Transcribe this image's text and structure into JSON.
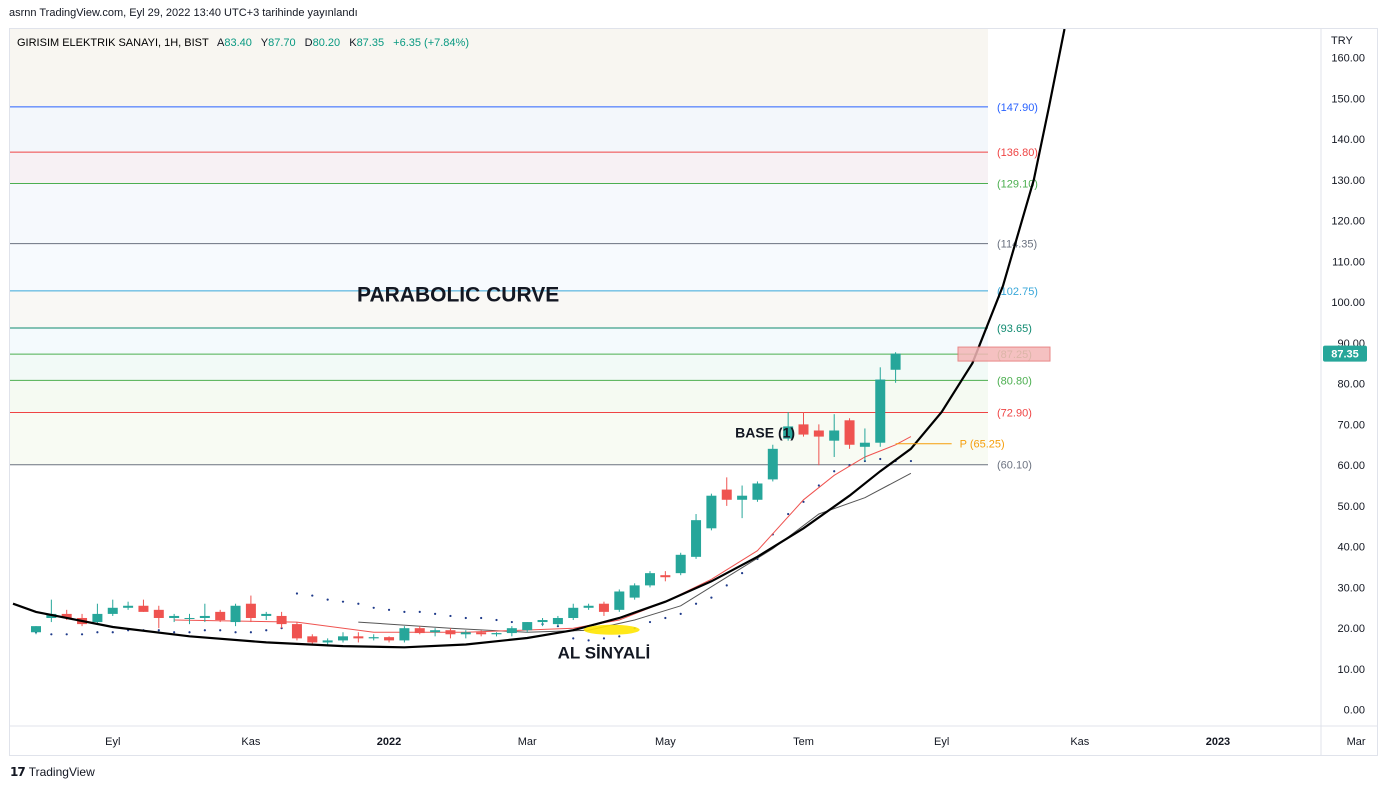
{
  "header": {
    "published": "asrnn TradingView.com, Eyl 29, 2022 13:40 UTC+3 tarihinde yayınlandı"
  },
  "legend": {
    "symbol": "GIRISIM ELEKTRIK SANAYI, 1H, BIST",
    "open_label": "A",
    "open": "83.40",
    "high_label": "Y",
    "high": "87.70",
    "low_label": "D",
    "low": "80.20",
    "close_label": "K",
    "close": "87.35",
    "change": "+6.35 (+7.84%)"
  },
  "currency": "TRY",
  "last_price": "87.35",
  "footer": {
    "brand": "TradingView"
  },
  "colors": {
    "up": "#26a69a",
    "down": "#ef5350",
    "curve": "#000000",
    "ma_fast": "#ef5350",
    "ma_slow": "#555555",
    "sar": "#1e3a8a",
    "pivot": "#f59e0b"
  },
  "chart_data": {
    "type": "candlestick",
    "ylim": [
      -4,
      167
    ],
    "y_ticks": [
      "0.00",
      "10.00",
      "20.00",
      "30.00",
      "40.00",
      "50.00",
      "60.00",
      "70.00",
      "80.00",
      "90.00",
      "100.00",
      "110.00",
      "120.00",
      "130.00",
      "140.00",
      "150.00",
      "160.00"
    ],
    "x_labels": [
      {
        "label": "Eyl",
        "i": 5
      },
      {
        "label": "Kas",
        "i": 14
      },
      {
        "label": "2022",
        "i": 23
      },
      {
        "label": "Mar",
        "i": 32
      },
      {
        "label": "May",
        "i": 41
      },
      {
        "label": "Tem",
        "i": 50
      },
      {
        "label": "Eyl",
        "i": 59
      },
      {
        "label": "Kas",
        "i": 68
      },
      {
        "label": "2023",
        "i": 77
      },
      {
        "label": "Mar",
        "i": 86
      }
    ],
    "candles": [
      {
        "o": 19.0,
        "h": 20.5,
        "l": 18.5,
        "c": 20.5
      },
      {
        "o": 22.5,
        "h": 27.0,
        "l": 21.5,
        "c": 23.5
      },
      {
        "o": 23.5,
        "h": 24.5,
        "l": 22.0,
        "c": 22.5
      },
      {
        "o": 22.5,
        "h": 23.5,
        "l": 20.5,
        "c": 21.0
      },
      {
        "o": 21.5,
        "h": 26.0,
        "l": 21.0,
        "c": 23.5
      },
      {
        "o": 23.5,
        "h": 27.0,
        "l": 23.0,
        "c": 25.0
      },
      {
        "o": 25.0,
        "h": 26.5,
        "l": 24.5,
        "c": 25.5
      },
      {
        "o": 25.5,
        "h": 27.0,
        "l": 24.0,
        "c": 24.0
      },
      {
        "o": 24.5,
        "h": 25.5,
        "l": 20.0,
        "c": 22.5
      },
      {
        "o": 22.5,
        "h": 23.5,
        "l": 21.5,
        "c": 23.0
      },
      {
        "o": 22.5,
        "h": 23.5,
        "l": 21.0,
        "c": 22.5
      },
      {
        "o": 22.5,
        "h": 26.0,
        "l": 21.5,
        "c": 23.0
      },
      {
        "o": 24.0,
        "h": 24.5,
        "l": 21.5,
        "c": 22.0
      },
      {
        "o": 21.5,
        "h": 26.0,
        "l": 20.5,
        "c": 25.5
      },
      {
        "o": 26.0,
        "h": 28.0,
        "l": 21.5,
        "c": 22.5
      },
      {
        "o": 23.0,
        "h": 24.0,
        "l": 22.0,
        "c": 23.5
      },
      {
        "o": 23.0,
        "h": 24.0,
        "l": 20.0,
        "c": 21.0
      },
      {
        "o": 21.0,
        "h": 21.5,
        "l": 17.0,
        "c": 17.5
      },
      {
        "o": 18.0,
        "h": 18.5,
        "l": 16.0,
        "c": 16.5
      },
      {
        "o": 16.5,
        "h": 17.5,
        "l": 15.5,
        "c": 17.0
      },
      {
        "o": 17.0,
        "h": 19.0,
        "l": 16.5,
        "c": 18.0
      },
      {
        "o": 18.0,
        "h": 19.0,
        "l": 16.5,
        "c": 17.5
      },
      {
        "o": 17.5,
        "h": 18.5,
        "l": 17.0,
        "c": 17.8
      },
      {
        "o": 17.8,
        "h": 18.0,
        "l": 16.5,
        "c": 17.0
      },
      {
        "o": 17.0,
        "h": 20.5,
        "l": 16.5,
        "c": 20.0
      },
      {
        "o": 20.0,
        "h": 20.5,
        "l": 18.5,
        "c": 18.8
      },
      {
        "o": 19.0,
        "h": 20.0,
        "l": 18.0,
        "c": 19.5
      },
      {
        "o": 19.5,
        "h": 20.0,
        "l": 17.5,
        "c": 18.5
      },
      {
        "o": 18.5,
        "h": 19.5,
        "l": 17.5,
        "c": 19.0
      },
      {
        "o": 19.0,
        "h": 19.5,
        "l": 18.0,
        "c": 18.5
      },
      {
        "o": 18.5,
        "h": 19.0,
        "l": 18.0,
        "c": 18.8
      },
      {
        "o": 18.8,
        "h": 20.5,
        "l": 18.0,
        "c": 20.0
      },
      {
        "o": 19.5,
        "h": 21.5,
        "l": 19.0,
        "c": 21.5
      },
      {
        "o": 21.5,
        "h": 22.5,
        "l": 20.5,
        "c": 22.0
      },
      {
        "o": 21.0,
        "h": 23.0,
        "l": 20.5,
        "c": 22.5
      },
      {
        "o": 22.5,
        "h": 26.0,
        "l": 22.0,
        "c": 25.0
      },
      {
        "o": 25.0,
        "h": 26.0,
        "l": 24.5,
        "c": 25.5
      },
      {
        "o": 26.0,
        "h": 26.5,
        "l": 23.0,
        "c": 24.0
      },
      {
        "o": 24.5,
        "h": 29.5,
        "l": 24.0,
        "c": 29.0
      },
      {
        "o": 27.5,
        "h": 31.0,
        "l": 27.0,
        "c": 30.5
      },
      {
        "o": 30.5,
        "h": 34.0,
        "l": 30.0,
        "c": 33.5
      },
      {
        "o": 33.0,
        "h": 34.0,
        "l": 31.5,
        "c": 32.5
      },
      {
        "o": 33.5,
        "h": 38.5,
        "l": 33.0,
        "c": 38.0
      },
      {
        "o": 37.5,
        "h": 48.0,
        "l": 37.0,
        "c": 46.5
      },
      {
        "o": 44.5,
        "h": 53.0,
        "l": 44.0,
        "c": 52.5
      },
      {
        "o": 54.0,
        "h": 57.0,
        "l": 50.0,
        "c": 51.5
      },
      {
        "o": 51.5,
        "h": 55.0,
        "l": 47.0,
        "c": 52.5
      },
      {
        "o": 51.5,
        "h": 56.0,
        "l": 51.0,
        "c": 55.5
      },
      {
        "o": 56.5,
        "h": 65.0,
        "l": 56.0,
        "c": 64.0
      },
      {
        "o": 66.5,
        "h": 73.0,
        "l": 66.0,
        "c": 69.5
      },
      {
        "o": 70.0,
        "h": 73.0,
        "l": 67.0,
        "c": 67.5
      },
      {
        "o": 68.5,
        "h": 70.0,
        "l": 60.0,
        "c": 67.0
      },
      {
        "o": 66.0,
        "h": 72.5,
        "l": 62.0,
        "c": 68.5
      },
      {
        "o": 71.0,
        "h": 71.5,
        "l": 64.0,
        "c": 65.0
      },
      {
        "o": 64.5,
        "h": 69.0,
        "l": 61.0,
        "c": 65.5
      },
      {
        "o": 65.5,
        "h": 84.0,
        "l": 64.5,
        "c": 81.0
      },
      {
        "o": 83.4,
        "h": 87.7,
        "l": 80.2,
        "c": 87.35
      }
    ],
    "ma_fast": [
      [
        9,
        22.0
      ],
      [
        17,
        21.5
      ],
      [
        22,
        19.0
      ],
      [
        28,
        19.0
      ],
      [
        35,
        20.0
      ],
      [
        38,
        22.0
      ],
      [
        41,
        26.5
      ],
      [
        44,
        32.0
      ],
      [
        47,
        39.0
      ],
      [
        50,
        51.5
      ],
      [
        52,
        57.5
      ],
      [
        54,
        62.0
      ],
      [
        56,
        65.0
      ],
      [
        57,
        67.0
      ]
    ],
    "ma_slow": [
      [
        21,
        21.5
      ],
      [
        27,
        20.0
      ],
      [
        32,
        19.0
      ],
      [
        36,
        19.5
      ],
      [
        39,
        22.0
      ],
      [
        42,
        25.5
      ],
      [
        45,
        32.5
      ],
      [
        48,
        39.5
      ],
      [
        51,
        48.0
      ],
      [
        54,
        52.0
      ],
      [
        56,
        56.0
      ],
      [
        57,
        58.0
      ]
    ],
    "sar": [
      [
        0,
        19.0
      ],
      [
        1,
        18.5
      ],
      [
        2,
        18.5
      ],
      [
        3,
        18.5
      ],
      [
        4,
        19.0
      ],
      [
        5,
        19.0
      ],
      [
        6,
        19.5
      ],
      [
        7,
        19.5
      ],
      [
        8,
        19.5
      ],
      [
        9,
        19.0
      ],
      [
        10,
        19.0
      ],
      [
        11,
        19.5
      ],
      [
        12,
        19.5
      ],
      [
        13,
        19.0
      ],
      [
        14,
        19.0
      ],
      [
        15,
        19.5
      ],
      [
        16,
        20.0
      ],
      [
        17,
        28.5
      ],
      [
        18,
        28.0
      ],
      [
        19,
        27.0
      ],
      [
        20,
        26.5
      ],
      [
        21,
        26.0
      ],
      [
        22,
        25.0
      ],
      [
        23,
        24.5
      ],
      [
        24,
        24.0
      ],
      [
        25,
        24.0
      ],
      [
        26,
        23.5
      ],
      [
        27,
        23.0
      ],
      [
        28,
        22.5
      ],
      [
        29,
        22.5
      ],
      [
        30,
        22.0
      ],
      [
        31,
        21.5
      ],
      [
        32,
        21.0
      ],
      [
        33,
        21.0
      ],
      [
        34,
        20.5
      ],
      [
        35,
        17.5
      ],
      [
        36,
        17.0
      ],
      [
        37,
        17.5
      ],
      [
        38,
        18.0
      ],
      [
        39,
        20.0
      ],
      [
        40,
        21.5
      ],
      [
        41,
        22.5
      ],
      [
        42,
        23.5
      ],
      [
        43,
        26.0
      ],
      [
        44,
        27.5
      ],
      [
        45,
        30.5
      ],
      [
        46,
        33.5
      ],
      [
        47,
        37.0
      ],
      [
        48,
        43.0
      ],
      [
        49,
        48.0
      ],
      [
        50,
        51.0
      ],
      [
        51,
        55.0
      ],
      [
        52,
        58.5
      ],
      [
        53,
        60.0
      ],
      [
        54,
        61.0
      ],
      [
        55,
        61.5
      ],
      [
        56,
        61.0
      ],
      [
        57,
        61.0
      ]
    ],
    "curve": [
      [
        -1.5,
        26.0
      ],
      [
        0,
        24.0
      ],
      [
        5,
        20.3
      ],
      [
        10,
        18.0
      ],
      [
        15,
        16.5
      ],
      [
        20,
        15.6
      ],
      [
        24,
        15.3
      ],
      [
        28,
        16.0
      ],
      [
        32,
        17.6
      ],
      [
        35,
        19.5
      ],
      [
        38,
        22.5
      ],
      [
        41,
        26.5
      ],
      [
        44,
        31.5
      ],
      [
        47,
        37.5
      ],
      [
        50,
        44.5
      ],
      [
        53,
        52.5
      ],
      [
        55,
        58.5
      ],
      [
        57,
        64.0
      ],
      [
        59,
        73.0
      ],
      [
        61,
        85.0
      ],
      [
        63,
        104.0
      ],
      [
        65,
        130.0
      ],
      [
        66,
        148.0
      ],
      [
        67,
        167.0
      ]
    ],
    "fib_levels": [
      {
        "value": 147.9,
        "label": "(147.90)",
        "color": "#2962ff"
      },
      {
        "value": 136.8,
        "label": "(136.80)",
        "color": "#ef4444"
      },
      {
        "value": 129.1,
        "label": "(129.10)",
        "color": "#4caf50"
      },
      {
        "value": 114.35,
        "label": "(114.35)",
        "color": "#6b7280"
      },
      {
        "value": 102.75,
        "label": "(102.75)",
        "color": "#38a7d9"
      },
      {
        "value": 93.65,
        "label": "(93.65)",
        "color": "#0f8a70"
      },
      {
        "value": 87.25,
        "label": "(87.25)",
        "color": "#4caf50"
      },
      {
        "value": 80.8,
        "label": "(80.80)",
        "color": "#4caf50"
      },
      {
        "value": 72.9,
        "label": "(72.90)",
        "color": "#ef4444"
      },
      {
        "value": 60.1,
        "label": "(60.10)",
        "color": "#6b7280"
      }
    ],
    "pivot": {
      "value": 65.25,
      "label": "P (65.25)",
      "from_i": 56,
      "to_i": 59
    },
    "target_box": {
      "value": 87.25,
      "from_i": 61,
      "to_i": 67
    },
    "annotations": [
      {
        "text": "PARABOLIC CURVE",
        "i": 27.5,
        "y": 100.2,
        "size": 21
      },
      {
        "text": "BASE (1)",
        "i": 47.5,
        "y": 66.8,
        "size": 14
      },
      {
        "text": "AL SİNYALİ",
        "i": 37.0,
        "y": 12.5,
        "size": 17
      }
    ]
  }
}
